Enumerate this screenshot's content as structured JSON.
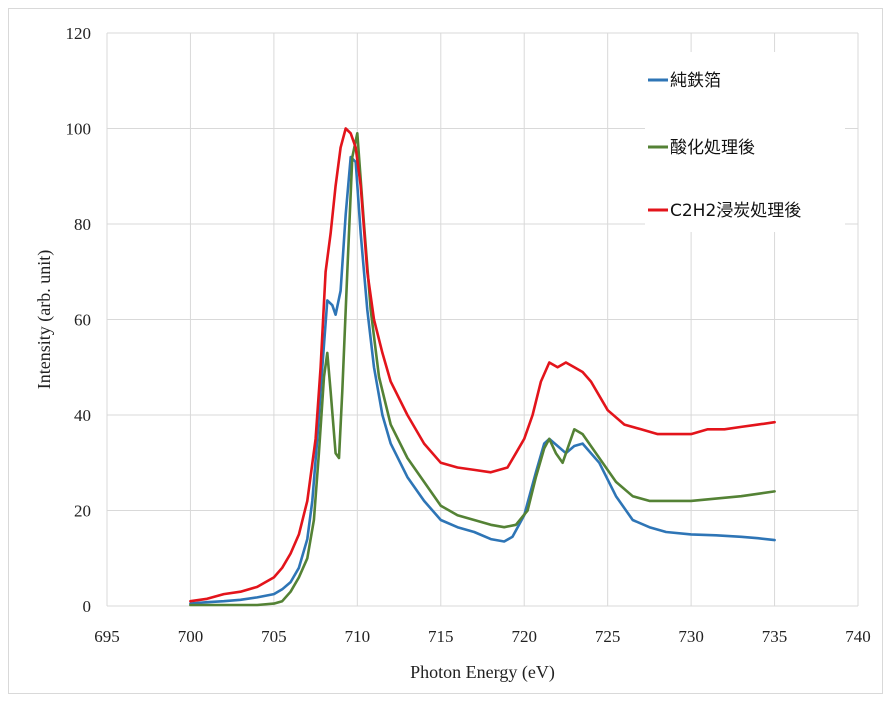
{
  "chart_data": {
    "type": "line",
    "title": "",
    "xlabel": "Photon Energy (eV)",
    "ylabel": "Intensity (arb. unit)",
    "xlim": [
      695,
      740
    ],
    "ylim": [
      0,
      120
    ],
    "x_ticks": [
      695,
      700,
      705,
      710,
      715,
      720,
      725,
      730,
      735,
      740
    ],
    "y_ticks": [
      0,
      20,
      40,
      60,
      80,
      100,
      120
    ],
    "grid": "both",
    "legend_position": "top-right",
    "series": [
      {
        "name": "純鉄箔",
        "color": "#2E75B6",
        "x": [
          700,
          701,
          702,
          703,
          704,
          705,
          705.5,
          706,
          706.5,
          707,
          707.3,
          707.6,
          707.9,
          708.2,
          708.5,
          708.7,
          709.0,
          709.3,
          709.6,
          709.9,
          710.2,
          710.6,
          711,
          711.5,
          712,
          713,
          714,
          715,
          716,
          717,
          718,
          718.8,
          719.3,
          720,
          720.7,
          721.2,
          721.5,
          722,
          722.5,
          723,
          723.5,
          724.5,
          725.5,
          726.5,
          727.5,
          728.5,
          730,
          731.5,
          733,
          734,
          735
        ],
        "y": [
          0.5,
          0.8,
          1.0,
          1.3,
          1.8,
          2.5,
          3.5,
          5,
          8,
          14,
          22,
          35,
          50,
          64,
          63,
          61,
          66,
          82,
          94,
          93,
          78,
          62,
          50,
          40,
          34,
          27,
          22,
          18,
          16.5,
          15.5,
          14,
          13.5,
          14.5,
          19,
          28,
          34,
          35,
          33.5,
          32,
          33.5,
          34,
          30,
          23,
          18,
          16.5,
          15.5,
          15,
          14.8,
          14.5,
          14.2,
          13.8
        ]
      },
      {
        "name": "酸化処理後",
        "color": "#548235",
        "x": [
          700,
          701,
          702,
          703,
          704,
          705,
          705.5,
          706,
          706.5,
          707,
          707.4,
          707.7,
          708.0,
          708.2,
          708.4,
          708.7,
          708.9,
          709.1,
          709.4,
          709.7,
          710.0,
          710.4,
          710.8,
          711.3,
          712,
          713,
          714,
          715,
          716,
          717,
          718,
          718.8,
          719.5,
          720.2,
          720.7,
          721.2,
          721.5,
          721.9,
          722.3,
          722.7,
          723,
          723.5,
          724.5,
          725.5,
          726.5,
          727.5,
          728.5,
          730,
          731.5,
          733,
          734,
          735
        ],
        "y": [
          0.2,
          0.2,
          0.2,
          0.2,
          0.2,
          0.5,
          1,
          3,
          6,
          10,
          18,
          32,
          48,
          53,
          45,
          32,
          31,
          45,
          70,
          94,
          99,
          80,
          62,
          48,
          38,
          31,
          26,
          21,
          19,
          18,
          17,
          16.5,
          17,
          20,
          27,
          33,
          35,
          32,
          30,
          34,
          37,
          36,
          31,
          26,
          23,
          22,
          22,
          22,
          22.5,
          23,
          23.5,
          24
        ]
      },
      {
        "name": "C2H2浸炭処理後",
        "color": "#E3141B",
        "x": [
          700,
          701,
          702,
          703,
          704,
          705,
          705.5,
          706,
          706.5,
          707,
          707.5,
          707.8,
          708.1,
          708.4,
          708.7,
          709.0,
          709.3,
          709.6,
          709.9,
          710.2,
          710.6,
          711,
          711.5,
          712,
          713,
          714,
          715,
          716,
          717,
          718,
          719,
          719.5,
          720,
          720.5,
          721,
          721.5,
          722,
          722.5,
          723,
          723.5,
          724,
          725,
          726,
          727,
          728,
          729,
          730,
          731,
          732,
          733,
          734,
          735
        ],
        "y": [
          1,
          1.5,
          2.5,
          3,
          4,
          6,
          8,
          11,
          15,
          22,
          35,
          50,
          70,
          78,
          88,
          96,
          100,
          99,
          96,
          88,
          70,
          60,
          53,
          47,
          40,
          34,
          30,
          29,
          28.5,
          28,
          29,
          32,
          35,
          40,
          47,
          51,
          50,
          51,
          50,
          49,
          47,
          41,
          38,
          37,
          36,
          36,
          36,
          37,
          37,
          37.5,
          38,
          38.5
        ]
      }
    ]
  }
}
